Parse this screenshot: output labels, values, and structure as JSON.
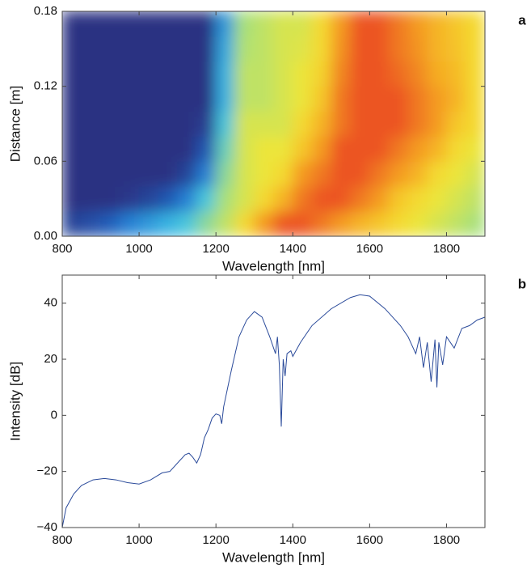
{
  "chart_data": [
    {
      "type": "heatmap",
      "label": "a",
      "x_label": "Wavelength [nm]",
      "y_label": "Distance [m]",
      "xlim": [
        800,
        1900
      ],
      "xticks": [
        800,
        1000,
        1200,
        1400,
        1600,
        1800
      ],
      "ylim": [
        0,
        0.18
      ],
      "yticks": [
        {
          "value": 0,
          "label": "0.00"
        },
        {
          "value": 0.06,
          "label": "0.06"
        },
        {
          "value": 0.12,
          "label": "0.12"
        },
        {
          "value": 0.18,
          "label": "0.18"
        }
      ],
      "x": [
        825,
        875,
        925,
        975,
        1025,
        1075,
        1125,
        1175,
        1225,
        1275,
        1325,
        1375,
        1425,
        1475,
        1525,
        1575,
        1625,
        1675,
        1725,
        1775,
        1825,
        1875
      ],
      "y": [
        0.01,
        0.03,
        0.05,
        0.07,
        0.09,
        0.11,
        0.13,
        0.15,
        0.17
      ],
      "z": [
        [
          0.05,
          0.08,
          0.12,
          0.2,
          0.25,
          0.3,
          0.35,
          0.45,
          0.55,
          0.7,
          0.85,
          0.95,
          0.95,
          0.9,
          0.85,
          0.8,
          0.75,
          0.7,
          0.65,
          0.6,
          0.55,
          0.5
        ],
        [
          0,
          0,
          0,
          0.02,
          0.05,
          0.1,
          0.2,
          0.35,
          0.5,
          0.6,
          0.7,
          0.8,
          0.9,
          0.95,
          0.95,
          0.9,
          0.85,
          0.75,
          0.7,
          0.65,
          0.6,
          0.55
        ],
        [
          0,
          0,
          0,
          0,
          0,
          0,
          0.05,
          0.2,
          0.45,
          0.6,
          0.65,
          0.7,
          0.85,
          0.9,
          0.95,
          0.95,
          0.9,
          0.85,
          0.8,
          0.7,
          0.65,
          0.6
        ],
        [
          0,
          0,
          0,
          0,
          0,
          0,
          0,
          0.1,
          0.4,
          0.6,
          0.65,
          0.65,
          0.75,
          0.85,
          0.95,
          0.95,
          0.95,
          0.9,
          0.85,
          0.8,
          0.7,
          0.65
        ],
        [
          0,
          0,
          0,
          0,
          0,
          0,
          0,
          0.03,
          0.35,
          0.6,
          0.6,
          0.6,
          0.7,
          0.8,
          0.9,
          0.95,
          0.95,
          0.95,
          0.9,
          0.85,
          0.75,
          0.7
        ],
        [
          0,
          0,
          0,
          0,
          0,
          0,
          0,
          0,
          0.3,
          0.55,
          0.55,
          0.6,
          0.65,
          0.75,
          0.9,
          0.95,
          0.95,
          0.95,
          0.9,
          0.85,
          0.8,
          0.7
        ],
        [
          0,
          0,
          0,
          0,
          0,
          0,
          0,
          0,
          0.3,
          0.55,
          0.55,
          0.6,
          0.65,
          0.72,
          0.88,
          0.95,
          0.95,
          0.92,
          0.88,
          0.82,
          0.78,
          0.7
        ],
        [
          0,
          0,
          0,
          0,
          0,
          0,
          0,
          0,
          0.28,
          0.52,
          0.55,
          0.6,
          0.62,
          0.7,
          0.86,
          0.95,
          0.95,
          0.9,
          0.86,
          0.8,
          0.76,
          0.7
        ],
        [
          0,
          0,
          0,
          0,
          0,
          0,
          0,
          0,
          0.25,
          0.5,
          0.55,
          0.6,
          0.6,
          0.7,
          0.85,
          0.95,
          0.95,
          0.9,
          0.85,
          0.8,
          0.75,
          0.7
        ]
      ],
      "colorscale": [
        "#2b3282",
        "#1e6fd0",
        "#3fc3e6",
        "#a8e07a",
        "#f4e634",
        "#f5a623",
        "#e8321e"
      ]
    },
    {
      "type": "line",
      "label": "b",
      "x_label": "Wavelength [nm]",
      "y_label": "Intensity [dB]",
      "xlim": [
        800,
        1900
      ],
      "xticks": [
        800,
        1000,
        1200,
        1400,
        1600,
        1800
      ],
      "ylim": [
        -40,
        50
      ],
      "yticks": [
        {
          "value": -40,
          "label": "−40"
        },
        {
          "value": -20,
          "label": "−20"
        },
        0,
        20,
        40
      ],
      "color": "#2a4a9a",
      "x": [
        800,
        810,
        830,
        850,
        880,
        910,
        940,
        970,
        1000,
        1030,
        1060,
        1080,
        1100,
        1120,
        1130,
        1140,
        1150,
        1160,
        1170,
        1180,
        1190,
        1200,
        1210,
        1215,
        1220,
        1240,
        1260,
        1280,
        1300,
        1320,
        1340,
        1355,
        1360,
        1365,
        1370,
        1375,
        1380,
        1385,
        1395,
        1400,
        1420,
        1450,
        1500,
        1550,
        1575,
        1600,
        1640,
        1680,
        1700,
        1720,
        1730,
        1740,
        1750,
        1760,
        1770,
        1775,
        1780,
        1790,
        1800,
        1820,
        1840,
        1860,
        1880,
        1900
      ],
      "values": [
        -40,
        -33,
        -28,
        -25,
        -23,
        -22.5,
        -23,
        -24,
        -24.5,
        -23,
        -20.5,
        -20,
        -17,
        -14,
        -13.5,
        -15,
        -17,
        -14,
        -8,
        -5,
        -1,
        0.5,
        0,
        -3,
        3,
        16,
        28,
        34,
        37,
        35,
        28,
        22,
        28,
        18,
        -4,
        20,
        14,
        22,
        23,
        21,
        26,
        32,
        38,
        42,
        43,
        42.5,
        38,
        32,
        28,
        22,
        28,
        17,
        26,
        12,
        27,
        10,
        26,
        18,
        28,
        24,
        31,
        32,
        34,
        35
      ]
    }
  ]
}
